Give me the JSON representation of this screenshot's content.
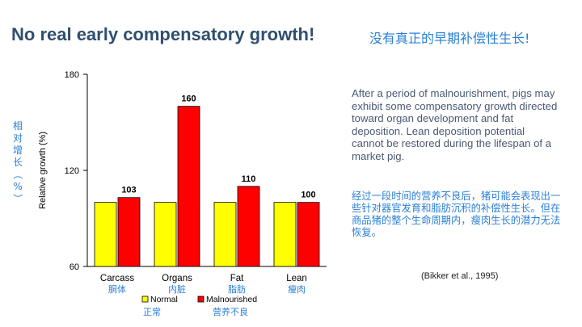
{
  "slide": {
    "title": "No real early compensatory growth!",
    "title_cn": "没有真正的早期补偿性生长!",
    "description_en": "After a period of malnourishment, pigs may exhibit some compensatory growth directed toward organ development and fat deposition.  Lean deposition potential cannot be restored during the lifespan of a market pig.",
    "description_cn": "经过一段时间的营养不良后，猪可能会表现出一些针对器官发育和脂肪沉积的补偿性生长。但在商品猪的整个生命周期内，瘦肉生长的潜力无法恢复。",
    "citation": "(Bikker et al., 1995)"
  },
  "chart_data": {
    "type": "bar",
    "ylabel": "Relative growth (%)",
    "ylabel_cn": "相对增长（%）",
    "ylim": [
      60,
      180
    ],
    "yticks": [
      60,
      120,
      180
    ],
    "categories": [
      "Carcass",
      "Organs",
      "Fat",
      "Lean"
    ],
    "categories_cn": [
      "胴体",
      "内脏",
      "脂肪",
      "瘦肉"
    ],
    "series": [
      {
        "name": "Normal",
        "name_cn": "正常",
        "color": "#ffff00",
        "values": [
          100,
          100,
          100,
          100
        ]
      },
      {
        "name": "Malnourished",
        "name_cn": "营养不良",
        "color": "#ff0000",
        "values": [
          103,
          160,
          110,
          100
        ]
      }
    ],
    "data_labels": [
      "103",
      "160",
      "110",
      "100"
    ]
  }
}
